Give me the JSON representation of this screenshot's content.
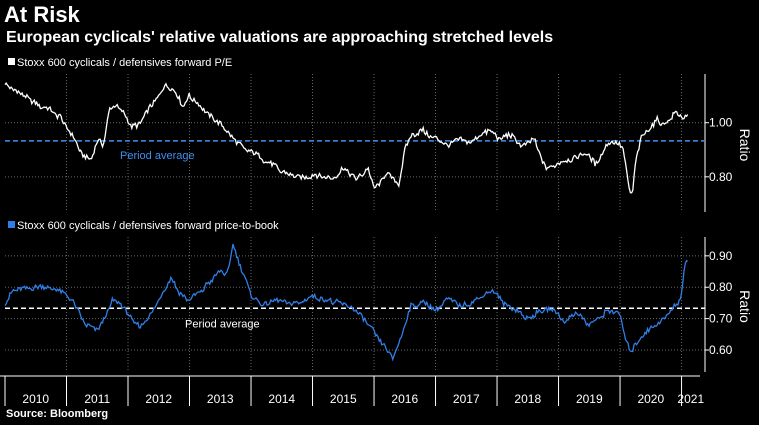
{
  "title": "At Risk",
  "subtitle": "European cyclicals' relative valuations are approaching stretched levels",
  "source": "Source: Bloomberg",
  "chart_data": [
    {
      "type": "line",
      "legend": "Stoxx 600 cyclicals / defensives forward P/E",
      "ylabel": "Ratio",
      "ylim": [
        0.67,
        1.18
      ],
      "yticks": [
        "0.80",
        "1.00"
      ],
      "average": 0.933,
      "average_label": "Period average",
      "line_color": "#ffffff",
      "average_color": "#3f8ff0",
      "series": [
        {
          "name": "Stoxx 600 cyclicals / defensives forward P/E",
          "x": [
            2010.0,
            2010.15,
            2010.3,
            2010.5,
            2010.7,
            2010.9,
            2011.1,
            2011.25,
            2011.4,
            2011.5,
            2011.6,
            2011.7,
            2011.8,
            2011.95,
            2012.05,
            2012.2,
            2012.35,
            2012.5,
            2012.6,
            2012.75,
            2012.9,
            2013.0,
            2013.15,
            2013.3,
            2013.5,
            2013.7,
            2013.9,
            2014.1,
            2014.3,
            2014.5,
            2014.7,
            2014.9,
            2015.1,
            2015.3,
            2015.5,
            2015.7,
            2015.9,
            2016.0,
            2016.1,
            2016.2,
            2016.3,
            2016.4,
            2016.5,
            2016.6,
            2016.8,
            2017.0,
            2017.2,
            2017.4,
            2017.6,
            2017.8,
            2017.95,
            2018.05,
            2018.2,
            2018.4,
            2018.6,
            2018.8,
            2019.0,
            2019.2,
            2019.4,
            2019.6,
            2019.8,
            2019.95,
            2020.05,
            2020.15,
            2020.2,
            2020.25,
            2020.35,
            2020.5,
            2020.6,
            2020.7,
            2020.8,
            2020.9,
            2021.0,
            2021.1
          ],
          "values": [
            1.15,
            1.12,
            1.1,
            1.07,
            1.05,
            1.02,
            0.95,
            0.88,
            0.86,
            0.93,
            0.92,
            1.05,
            1.07,
            1.03,
            0.98,
            1.0,
            1.06,
            1.1,
            1.14,
            1.12,
            1.06,
            1.1,
            1.07,
            1.03,
            1.0,
            0.95,
            0.9,
            0.88,
            0.85,
            0.82,
            0.8,
            0.8,
            0.81,
            0.79,
            0.83,
            0.79,
            0.83,
            0.76,
            0.78,
            0.82,
            0.8,
            0.77,
            0.9,
            0.95,
            0.97,
            0.94,
            0.91,
            0.94,
            0.93,
            0.97,
            0.96,
            0.94,
            0.96,
            0.91,
            0.94,
            0.83,
            0.85,
            0.86,
            0.89,
            0.85,
            0.92,
            0.93,
            0.9,
            0.75,
            0.73,
            0.85,
            0.95,
            0.98,
            1.02,
            0.99,
            1.01,
            1.04,
            1.02,
            1.02
          ]
        }
      ]
    },
    {
      "type": "line",
      "legend": "Stoxx 600 cyclicals / defensives forward price-to-book",
      "ylabel": "Ratio",
      "ylim": [
        0.53,
        0.96
      ],
      "yticks": [
        "0.60",
        "0.70",
        "0.80",
        "0.90"
      ],
      "average": 0.733,
      "average_label": "Period average",
      "line_color": "#2f7fe8",
      "average_color": "#ffffff",
      "series": [
        {
          "name": "Stoxx 600 cyclicals / defensives forward price-to-book",
          "x": [
            2010.0,
            2010.15,
            2010.3,
            2010.5,
            2010.7,
            2010.9,
            2011.1,
            2011.3,
            2011.5,
            2011.6,
            2011.75,
            2011.9,
            2012.05,
            2012.2,
            2012.4,
            2012.55,
            2012.7,
            2012.85,
            2013.0,
            2013.2,
            2013.4,
            2013.5,
            2013.6,
            2013.65,
            2013.7,
            2013.8,
            2013.9,
            2014.0,
            2014.2,
            2014.4,
            2014.6,
            2014.8,
            2015.0,
            2015.2,
            2015.4,
            2015.6,
            2015.8,
            2016.0,
            2016.1,
            2016.2,
            2016.3,
            2016.45,
            2016.6,
            2016.8,
            2017.0,
            2017.2,
            2017.4,
            2017.6,
            2017.8,
            2017.95,
            2018.1,
            2018.3,
            2018.5,
            2018.7,
            2018.9,
            2019.1,
            2019.3,
            2019.5,
            2019.7,
            2019.85,
            2020.0,
            2020.1,
            2020.2,
            2020.35,
            2020.5,
            2020.7,
            2020.85,
            2020.95,
            2021.0,
            2021.05,
            2021.1
          ],
          "values": [
            0.75,
            0.79,
            0.8,
            0.8,
            0.8,
            0.79,
            0.76,
            0.68,
            0.66,
            0.69,
            0.76,
            0.74,
            0.7,
            0.67,
            0.72,
            0.78,
            0.83,
            0.78,
            0.76,
            0.79,
            0.83,
            0.85,
            0.84,
            0.87,
            0.94,
            0.88,
            0.83,
            0.77,
            0.74,
            0.76,
            0.75,
            0.75,
            0.77,
            0.76,
            0.75,
            0.74,
            0.71,
            0.66,
            0.63,
            0.61,
            0.57,
            0.65,
            0.74,
            0.75,
            0.73,
            0.76,
            0.74,
            0.75,
            0.78,
            0.79,
            0.75,
            0.73,
            0.7,
            0.72,
            0.73,
            0.69,
            0.72,
            0.68,
            0.71,
            0.73,
            0.71,
            0.62,
            0.6,
            0.64,
            0.67,
            0.7,
            0.73,
            0.75,
            0.78,
            0.87,
            0.88
          ]
        }
      ]
    }
  ],
  "xaxis": {
    "labels": [
      "2010",
      "2011",
      "2012",
      "2013",
      "2014",
      "2015",
      "2016",
      "2017",
      "2018",
      "2019",
      "2020",
      "2021"
    ],
    "xlim": [
      2010.0,
      2021.3
    ]
  }
}
